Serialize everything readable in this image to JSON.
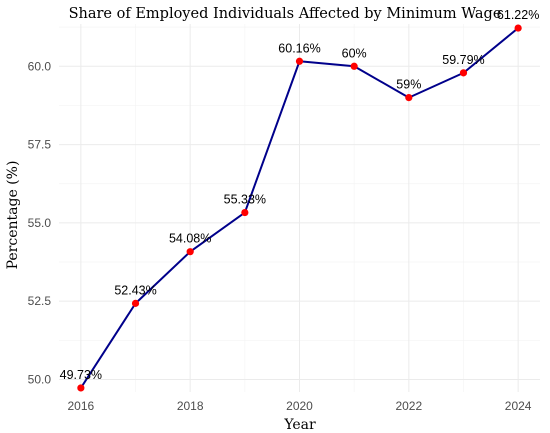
{
  "chart_data": {
    "type": "line",
    "title": "Share of Employed  Individuals Affected by Minimum Wage",
    "xlabel": "Year",
    "ylabel": "Percentage (%)",
    "x": [
      2016,
      2017,
      2018,
      2019,
      2020,
      2021,
      2022,
      2023,
      2024
    ],
    "series": [
      {
        "values": [
          49.73,
          52.43,
          54.08,
          55.33,
          60.16,
          60.0,
          59.0,
          59.79,
          61.22
        ],
        "labels": [
          "49.73%",
          "52.43%",
          "54.08%",
          "55.33%",
          "60.16%",
          "60%",
          "59%",
          "59.79%",
          "61.22%"
        ]
      }
    ],
    "xlim": [
      2015.6,
      2024.4
    ],
    "ylim": [
      49.6,
      61.35
    ],
    "xticks": [
      2016,
      2018,
      2020,
      2022,
      2024
    ],
    "xtick_labels": [
      "2016",
      "2018",
      "2020",
      "2022",
      "2024"
    ],
    "yticks": [
      50.0,
      52.5,
      55.0,
      57.5,
      60.0
    ],
    "ytick_labels": [
      "50.0",
      "52.5",
      "55.0",
      "57.5",
      "60.0"
    ],
    "grid": true,
    "legend": "none",
    "colors": {
      "line": "#00008b",
      "points": "#ff0000"
    }
  }
}
